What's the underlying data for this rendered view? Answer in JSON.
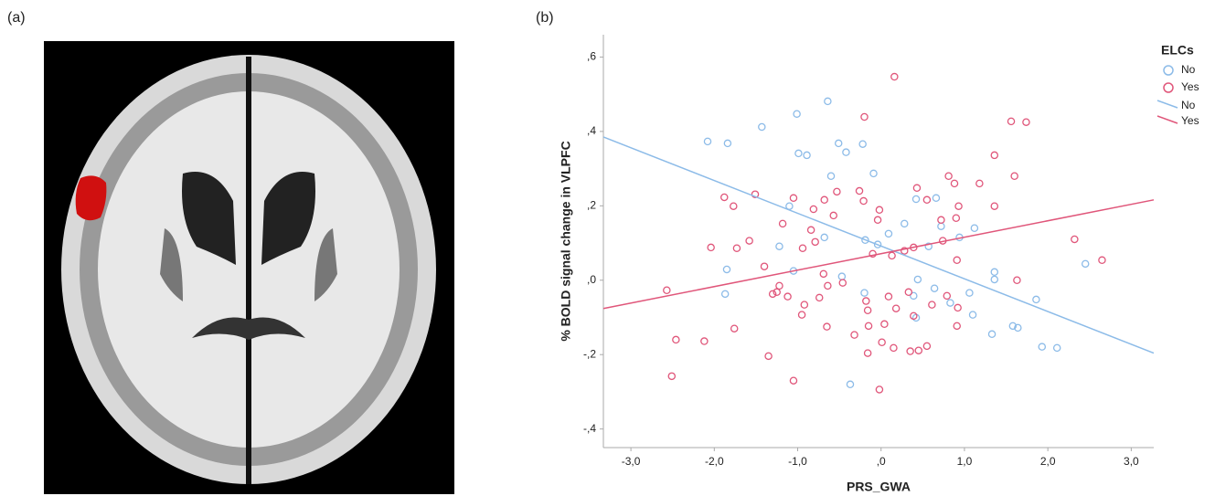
{
  "panel_labels": [
    "(a)",
    "(b)"
  ],
  "chart_data": {
    "type": "scatter",
    "x_label": "PRS_GWA",
    "y_label": "% BOLD signal change in VLPFC",
    "legend_title": "ELCs",
    "xlim": [
      -3.33,
      3.27
    ],
    "ylim": [
      -0.45,
      0.66
    ],
    "xticks": [
      {
        "value": -3,
        "label": "-3,0"
      },
      {
        "value": -2,
        "label": "-2,0"
      },
      {
        "value": -1,
        "label": "-1,0"
      },
      {
        "value": 0,
        "label": ",0"
      },
      {
        "value": 1,
        "label": "1,0"
      },
      {
        "value": 2,
        "label": "2,0"
      },
      {
        "value": 3,
        "label": "3,0"
      }
    ],
    "yticks": [
      {
        "value": -0.4,
        "label": "-,4"
      },
      {
        "value": -0.2,
        "label": "-,2"
      },
      {
        "value": 0,
        "label": ",0"
      },
      {
        "value": 0.2,
        "label": ",2"
      },
      {
        "value": 0.4,
        "label": ",4"
      },
      {
        "value": 0.6,
        "label": ",6"
      }
    ],
    "series": [
      {
        "name": "No",
        "color": "#8cbbe8",
        "x": [
          -2.08,
          -1.84,
          -1.43,
          -1.01,
          -0.64,
          -0.99,
          -0.89,
          -0.51,
          -0.22,
          -0.42,
          -0.09,
          -0.6,
          -1.1,
          -1.85,
          -1.87,
          -1.22,
          -1.05,
          -0.68,
          -0.47,
          -0.19,
          -0.04,
          0.09,
          0.28,
          0.42,
          0.66,
          0.72,
          0.94,
          1.12,
          0.44,
          0.39,
          0.64,
          0.83,
          1.06,
          1.36,
          1.36,
          1.1,
          1.33,
          1.58,
          1.86,
          1.93,
          1.64,
          2.11,
          2.45,
          -0.37,
          -0.2,
          0.42,
          0.57
        ],
        "values": [
          0.373,
          0.368,
          0.412,
          0.447,
          0.481,
          0.341,
          0.336,
          0.368,
          0.366,
          0.344,
          0.287,
          0.28,
          0.199,
          0.029,
          -0.037,
          0.091,
          0.025,
          0.115,
          0.01,
          0.108,
          0.096,
          0.125,
          0.152,
          0.218,
          0.221,
          0.145,
          0.115,
          0.14,
          0.002,
          -0.042,
          -0.022,
          -0.061,
          -0.034,
          0.002,
          0.022,
          -0.093,
          -0.145,
          -0.123,
          -0.052,
          -0.179,
          -0.128,
          -0.182,
          0.044,
          -0.28,
          -0.034,
          -0.101,
          0.091
        ]
      },
      {
        "name": "Yes",
        "color": "#e0567a",
        "x": [
          0.16,
          -0.2,
          1.56,
          1.74,
          1.36,
          -1.88,
          -1.77,
          -1.51,
          -1.05,
          -0.81,
          -0.68,
          -0.57,
          -0.53,
          -0.26,
          -0.21,
          -0.02,
          -0.04,
          0.43,
          0.55,
          0.81,
          0.88,
          1.18,
          1.6,
          1.36,
          0.72,
          0.9,
          0.93,
          0.74,
          0.39,
          0.28,
          0.13,
          -0.1,
          -0.84,
          -1.18,
          -0.94,
          -0.79,
          -1.58,
          -1.73,
          -2.04,
          -1.4,
          -1.22,
          -1.3,
          -1.25,
          -1.12,
          -0.92,
          -0.74,
          -0.69,
          -0.64,
          -0.46,
          -0.95,
          -0.65,
          -0.18,
          -0.16,
          -0.15,
          0.04,
          0.18,
          0.09,
          0.33,
          0.39,
          0.61,
          0.79,
          0.92,
          0.91,
          1.63,
          2.32,
          2.65,
          -2.57,
          -2.46,
          -2.12,
          -1.76,
          -1.35,
          -2.51,
          -1.05,
          -0.32,
          -0.16,
          0.01,
          0.15,
          0.35,
          0.45,
          0.55,
          -0.02,
          0.91
        ],
        "values": [
          0.547,
          0.439,
          0.427,
          0.425,
          0.336,
          0.223,
          0.199,
          0.231,
          0.221,
          0.191,
          0.216,
          0.174,
          0.238,
          0.24,
          0.213,
          0.189,
          0.162,
          0.248,
          0.216,
          0.28,
          0.26,
          0.26,
          0.28,
          0.199,
          0.162,
          0.167,
          0.199,
          0.106,
          0.088,
          0.079,
          0.066,
          0.071,
          0.135,
          0.152,
          0.086,
          0.103,
          0.106,
          0.086,
          0.088,
          0.037,
          -0.015,
          -0.037,
          -0.032,
          -0.044,
          -0.066,
          -0.047,
          0.017,
          -0.015,
          -0.007,
          -0.093,
          -0.125,
          -0.056,
          -0.081,
          -0.123,
          -0.118,
          -0.076,
          -0.044,
          -0.032,
          -0.096,
          -0.066,
          -0.042,
          -0.074,
          0.054,
          0.0,
          0.11,
          0.054,
          -0.027,
          -0.16,
          -0.164,
          -0.13,
          -0.204,
          -0.258,
          -0.27,
          -0.147,
          -0.196,
          -0.167,
          -0.182,
          -0.191,
          -0.189,
          -0.177,
          -0.294,
          -0.123
        ]
      }
    ],
    "fit_lines": [
      {
        "name": "No",
        "color": "#8cbbe8",
        "x": [
          -3.33,
          3.27
        ],
        "values": [
          0.385,
          -0.196
        ]
      },
      {
        "name": "Yes",
        "color": "#e0567a",
        "x": [
          -3.33,
          3.27
        ],
        "values": [
          -0.076,
          0.216
        ]
      }
    ]
  }
}
